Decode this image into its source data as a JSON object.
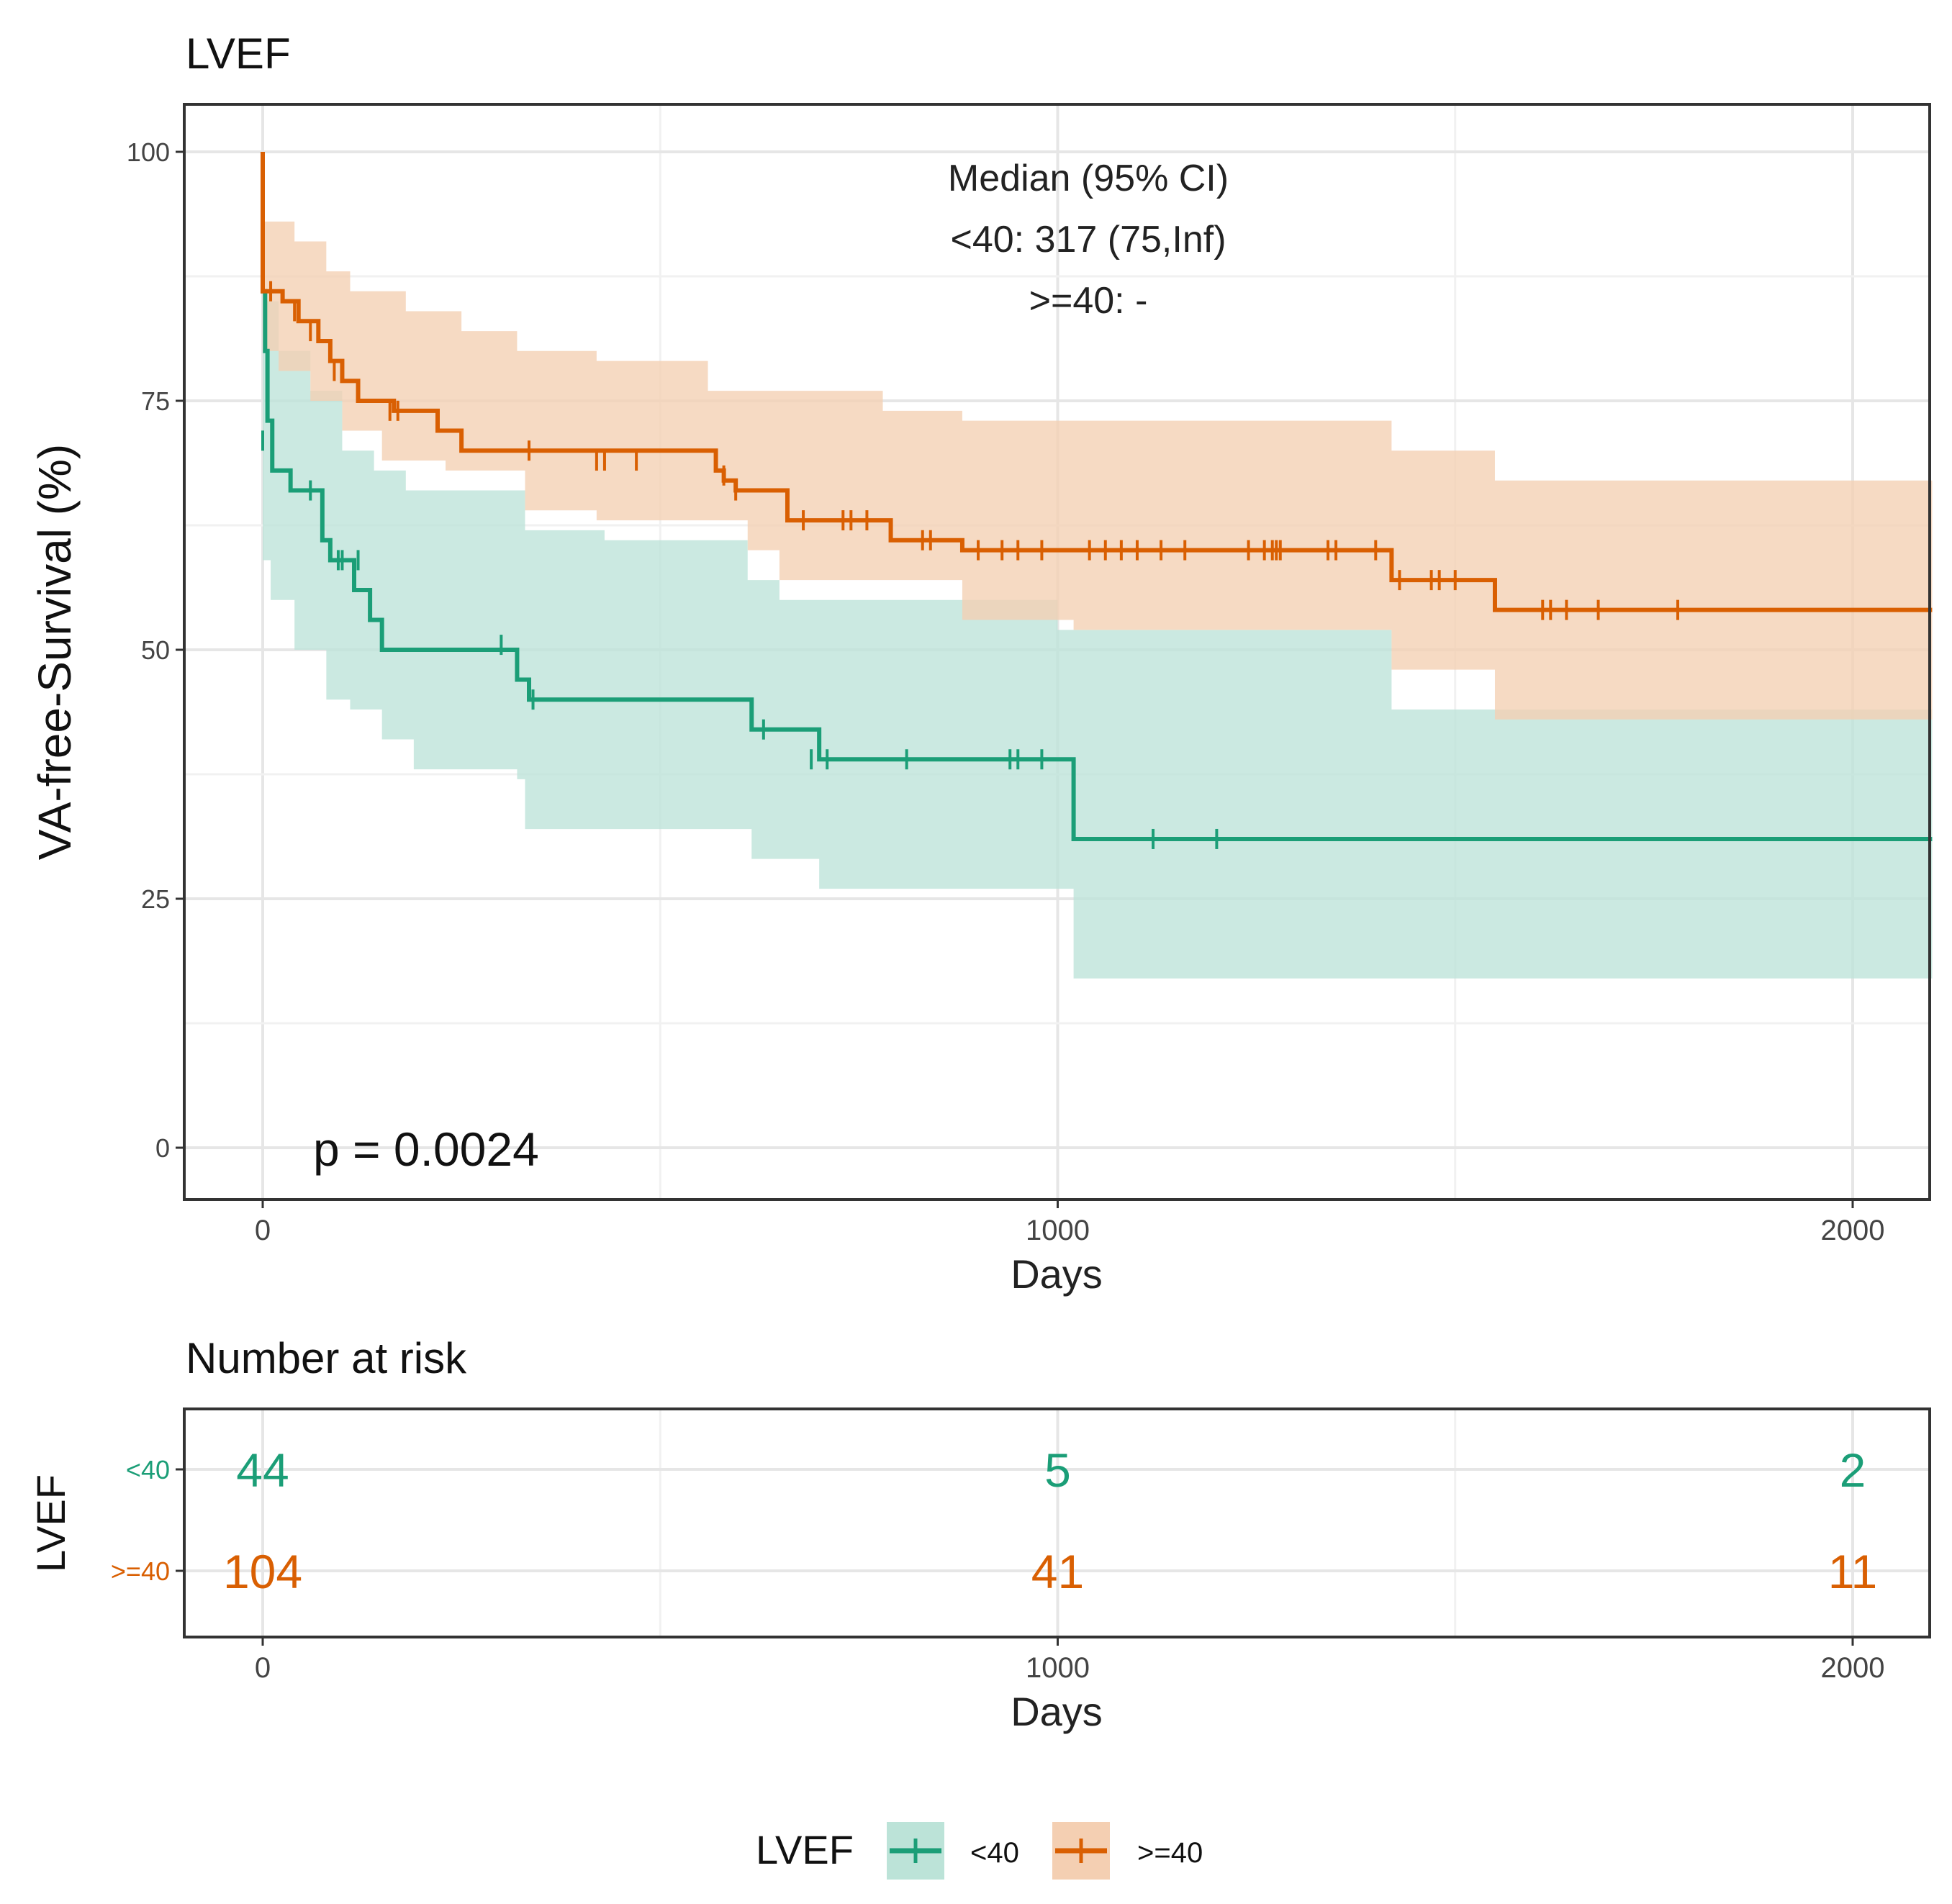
{
  "chart_data": [
    {
      "type": "line",
      "subtype": "kaplan-meier",
      "title": "LVEF",
      "xlabel": "Days",
      "ylabel": "VA-free-Survival (%)",
      "xlim": [
        -100,
        2100
      ],
      "ylim": [
        -5,
        105
      ],
      "xticks": [
        0,
        1000,
        2000
      ],
      "yticks": [
        0,
        25,
        50,
        75,
        100
      ],
      "grid": true,
      "annotations": {
        "pvalue": "p = 0.0024",
        "median_header": "Median (95% CI)",
        "median_lt40": "<40: 317 (75,Inf)",
        "median_ge40": ">=40: -"
      },
      "series": [
        {
          "name": "<40",
          "color": "#1b9e77",
          "fill": "#bce3d8",
          "steps": [
            [
              0,
              100
            ],
            [
              0,
              86
            ],
            [
              3,
              80
            ],
            [
              6,
              73
            ],
            [
              12,
              68
            ],
            [
              35,
              66
            ],
            [
              75,
              61
            ],
            [
              85,
              59
            ],
            [
              115,
              56
            ],
            [
              135,
              53
            ],
            [
              150,
              50
            ],
            [
              320,
              47
            ],
            [
              335,
              45
            ],
            [
              615,
              42
            ],
            [
              700,
              39
            ],
            [
              1020,
              31
            ],
            [
              2100,
              31
            ]
          ],
          "ci_upper": [
            [
              0,
              100
            ],
            [
              0,
              85
            ],
            [
              20,
              80
            ],
            [
              60,
              76
            ],
            [
              100,
              70
            ],
            [
              140,
              68
            ],
            [
              180,
              66
            ],
            [
              330,
              62
            ],
            [
              430,
              61
            ],
            [
              610,
              57
            ],
            [
              650,
              55
            ],
            [
              1000,
              52
            ],
            [
              1420,
              51
            ],
            [
              1420,
              44
            ],
            [
              2100,
              44
            ]
          ],
          "ci_lower": [
            [
              0,
              100
            ],
            [
              0,
              59
            ],
            [
              10,
              55
            ],
            [
              40,
              50
            ],
            [
              80,
              45
            ],
            [
              110,
              44
            ],
            [
              150,
              41
            ],
            [
              190,
              38
            ],
            [
              320,
              37
            ],
            [
              330,
              32
            ],
            [
              615,
              29
            ],
            [
              700,
              26
            ],
            [
              1020,
              17
            ],
            [
              2100,
              17
            ]
          ],
          "censor_marks": [
            [
              0,
              71
            ],
            [
              12,
              71
            ],
            [
              60,
              66
            ],
            [
              95,
              59
            ],
            [
              100,
              59
            ],
            [
              120,
              59
            ],
            [
              300,
              50.5
            ],
            [
              340,
              45
            ],
            [
              630,
              42
            ],
            [
              690,
              39
            ],
            [
              710,
              39
            ],
            [
              810,
              39
            ],
            [
              940,
              39
            ],
            [
              950,
              39
            ],
            [
              980,
              39
            ],
            [
              1120,
              31
            ],
            [
              1200,
              31
            ]
          ]
        },
        {
          "name": ">=40",
          "color": "#d95f02",
          "fill": "#f4cfb2",
          "steps": [
            [
              0,
              100
            ],
            [
              0,
              86
            ],
            [
              25,
              85
            ],
            [
              45,
              83
            ],
            [
              70,
              81
            ],
            [
              85,
              79
            ],
            [
              100,
              77
            ],
            [
              120,
              75
            ],
            [
              140,
              75
            ],
            [
              165,
              74
            ],
            [
              220,
              72
            ],
            [
              250,
              70
            ],
            [
              570,
              68
            ],
            [
              580,
              67
            ],
            [
              595,
              66
            ],
            [
              660,
              63
            ],
            [
              790,
              61
            ],
            [
              880,
              60
            ],
            [
              1420,
              57
            ],
            [
              1550,
              54
            ],
            [
              2100,
              54
            ]
          ],
          "ci_upper": [
            [
              0,
              100
            ],
            [
              0,
              93
            ],
            [
              40,
              91
            ],
            [
              80,
              88
            ],
            [
              110,
              86
            ],
            [
              180,
              84
            ],
            [
              250,
              82
            ],
            [
              320,
              80
            ],
            [
              420,
              79
            ],
            [
              560,
              76
            ],
            [
              780,
              74
            ],
            [
              880,
              73
            ],
            [
              1420,
              70
            ],
            [
              1550,
              67
            ],
            [
              2100,
              67
            ]
          ],
          "ci_lower": [
            [
              0,
              100
            ],
            [
              0,
              80
            ],
            [
              20,
              78
            ],
            [
              60,
              75
            ],
            [
              100,
              72
            ],
            [
              150,
              69
            ],
            [
              230,
              68
            ],
            [
              330,
              64
            ],
            [
              420,
              63
            ],
            [
              610,
              60
            ],
            [
              650,
              57
            ],
            [
              880,
              53
            ],
            [
              1020,
              52
            ],
            [
              1420,
              48
            ],
            [
              1550,
              43
            ],
            [
              2100,
              43
            ]
          ],
          "censor_marks": [
            [
              10,
              86
            ],
            [
              40,
              84
            ],
            [
              60,
              82
            ],
            [
              90,
              78
            ],
            [
              160,
              74
            ],
            [
              170,
              74
            ],
            [
              335,
              70
            ],
            [
              420,
              69
            ],
            [
              430,
              69
            ],
            [
              470,
              69
            ],
            [
              580,
              67.5
            ],
            [
              595,
              66
            ],
            [
              680,
              63
            ],
            [
              730,
              63
            ],
            [
              740,
              63
            ],
            [
              760,
              63
            ],
            [
              830,
              61
            ],
            [
              840,
              61
            ],
            [
              900,
              60
            ],
            [
              930,
              60
            ],
            [
              950,
              60
            ],
            [
              980,
              60
            ],
            [
              1040,
              60
            ],
            [
              1060,
              60
            ],
            [
              1080,
              60
            ],
            [
              1100,
              60
            ],
            [
              1130,
              60
            ],
            [
              1160,
              60
            ],
            [
              1240,
              60
            ],
            [
              1260,
              60
            ],
            [
              1270,
              60
            ],
            [
              1275,
              60
            ],
            [
              1280,
              60
            ],
            [
              1340,
              60
            ],
            [
              1350,
              60
            ],
            [
              1400,
              60
            ],
            [
              1430,
              57
            ],
            [
              1470,
              57
            ],
            [
              1480,
              57
            ],
            [
              1500,
              57
            ],
            [
              1610,
              54
            ],
            [
              1620,
              54
            ],
            [
              1640,
              54
            ],
            [
              1680,
              54
            ],
            [
              1780,
              54
            ]
          ]
        }
      ]
    },
    {
      "type": "table",
      "title": "Number at risk",
      "xlabel": "Days",
      "ylabel": "LVEF",
      "xticks": [
        0,
        1000,
        2000
      ],
      "row_labels": [
        "<40",
        ">=40"
      ],
      "rows": [
        {
          "name": "<40",
          "values": [
            "44",
            "5",
            "2"
          ]
        },
        {
          "name": ">=40",
          "values": [
            "104",
            "41",
            "11"
          ]
        }
      ]
    }
  ],
  "legend": {
    "title": "LVEF",
    "placement": "bottom",
    "items": [
      {
        "label": "<40"
      },
      {
        "label": ">=40"
      }
    ]
  }
}
